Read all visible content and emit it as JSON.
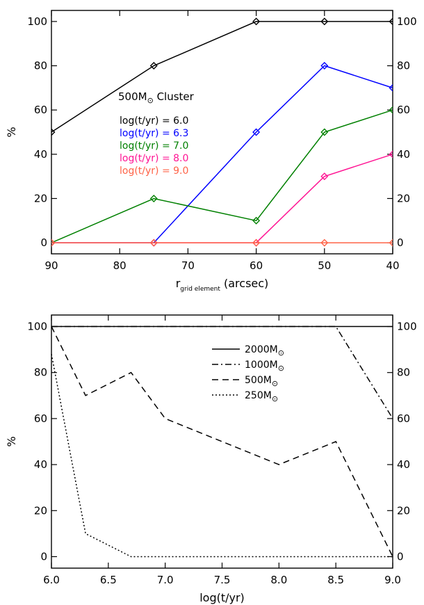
{
  "chart_data": [
    {
      "type": "line",
      "title": "500M⊙ Cluster",
      "title_parts": {
        "main": "500M",
        "subscript": "⊙",
        "rest": " Cluster"
      },
      "xlabel": "r(grid element) (arcsec)",
      "xlabel_parts": {
        "main": "r",
        "subscript": "grid element",
        "rest": " (arcsec)"
      },
      "ylabel": "%",
      "xlim": [
        90,
        40
      ],
      "ylim": [
        -5,
        105
      ],
      "xticks": [
        90,
        80,
        70,
        60,
        50,
        40
      ],
      "yticks": [
        0,
        20,
        40,
        60,
        80,
        100
      ],
      "marker": "diamond",
      "legend_placement": "upper-left-center",
      "x": [
        90,
        75,
        60,
        50,
        40
      ],
      "series": [
        {
          "name": "log(t/yr) = 6.0",
          "color": "#000000",
          "values": [
            50,
            80,
            100,
            100,
            100
          ]
        },
        {
          "name": "log(t/yr) = 6.3",
          "color": "#0000ff",
          "values": [
            0,
            0,
            50,
            80,
            70
          ]
        },
        {
          "name": "log(t/yr) = 7.0",
          "color": "#008000",
          "values": [
            0,
            20,
            10,
            50,
            60
          ]
        },
        {
          "name": "log(t/yr) = 8.0",
          "color": "#ff1493",
          "values": [
            0,
            0,
            0,
            30,
            40
          ]
        },
        {
          "name": "log(t/yr) = 9.0",
          "color": "#ff6347",
          "values": [
            0,
            0,
            0,
            0,
            0
          ]
        }
      ]
    },
    {
      "type": "line",
      "title": "",
      "xlabel": "log(t/yr)",
      "ylabel": "%",
      "xlim": [
        6.0,
        9.0
      ],
      "ylim": [
        -5,
        105
      ],
      "xticks": [
        "6.0",
        "6.5",
        "7.0",
        "7.5",
        "8.0",
        "8.5",
        "9.0"
      ],
      "yticks": [
        0,
        20,
        40,
        60,
        80,
        100
      ],
      "legend_placement": "top-center-right",
      "legend_subscript": "⊙",
      "series": [
        {
          "name": "2000M",
          "style": "solid",
          "x": [
            6.0,
            9.0
          ],
          "values": [
            100,
            100
          ]
        },
        {
          "name": "1000M",
          "style": "dashdot",
          "x": [
            6.0,
            8.5,
            9.0
          ],
          "values": [
            100,
            100,
            60
          ]
        },
        {
          "name": "500M",
          "style": "dashed",
          "x": [
            6.0,
            6.3,
            6.7,
            7.0,
            8.0,
            8.5,
            9.0
          ],
          "values": [
            100,
            70,
            80,
            60,
            40,
            50,
            0
          ]
        },
        {
          "name": "250M",
          "style": "dotted",
          "x": [
            6.0,
            6.3,
            6.7,
            9.0
          ],
          "values": [
            88,
            10,
            0,
            0
          ]
        }
      ]
    }
  ]
}
